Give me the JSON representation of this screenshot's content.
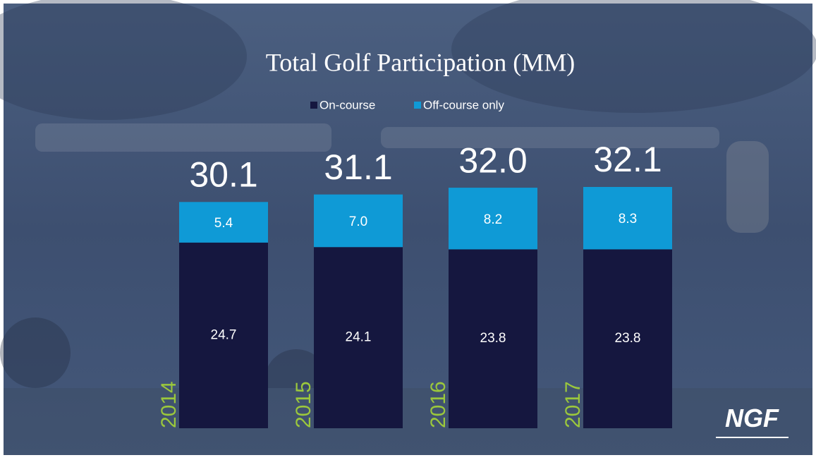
{
  "chart_data": {
    "type": "stacked-bar",
    "title": "Total Golf Participation (MM)",
    "categories": [
      "2014",
      "2015",
      "2016",
      "2017"
    ],
    "series": [
      {
        "name": "On-course",
        "color": "#15173f",
        "values": [
          24.7,
          24.1,
          23.8,
          23.8
        ]
      },
      {
        "name": "Off-course only",
        "color": "#0f9ad6",
        "values": [
          5.4,
          7.0,
          8.2,
          8.3
        ],
        "value_labels": [
          "5.4",
          "7.0",
          "8.2",
          "8.3"
        ]
      }
    ],
    "totals": {
      "values": [
        30.1,
        31.1,
        32.0,
        32.1
      ],
      "value_labels": [
        "30.1",
        "31.1",
        "32.0",
        "32.1"
      ]
    },
    "category_color": "#9bc83c",
    "logo": "NGF"
  }
}
